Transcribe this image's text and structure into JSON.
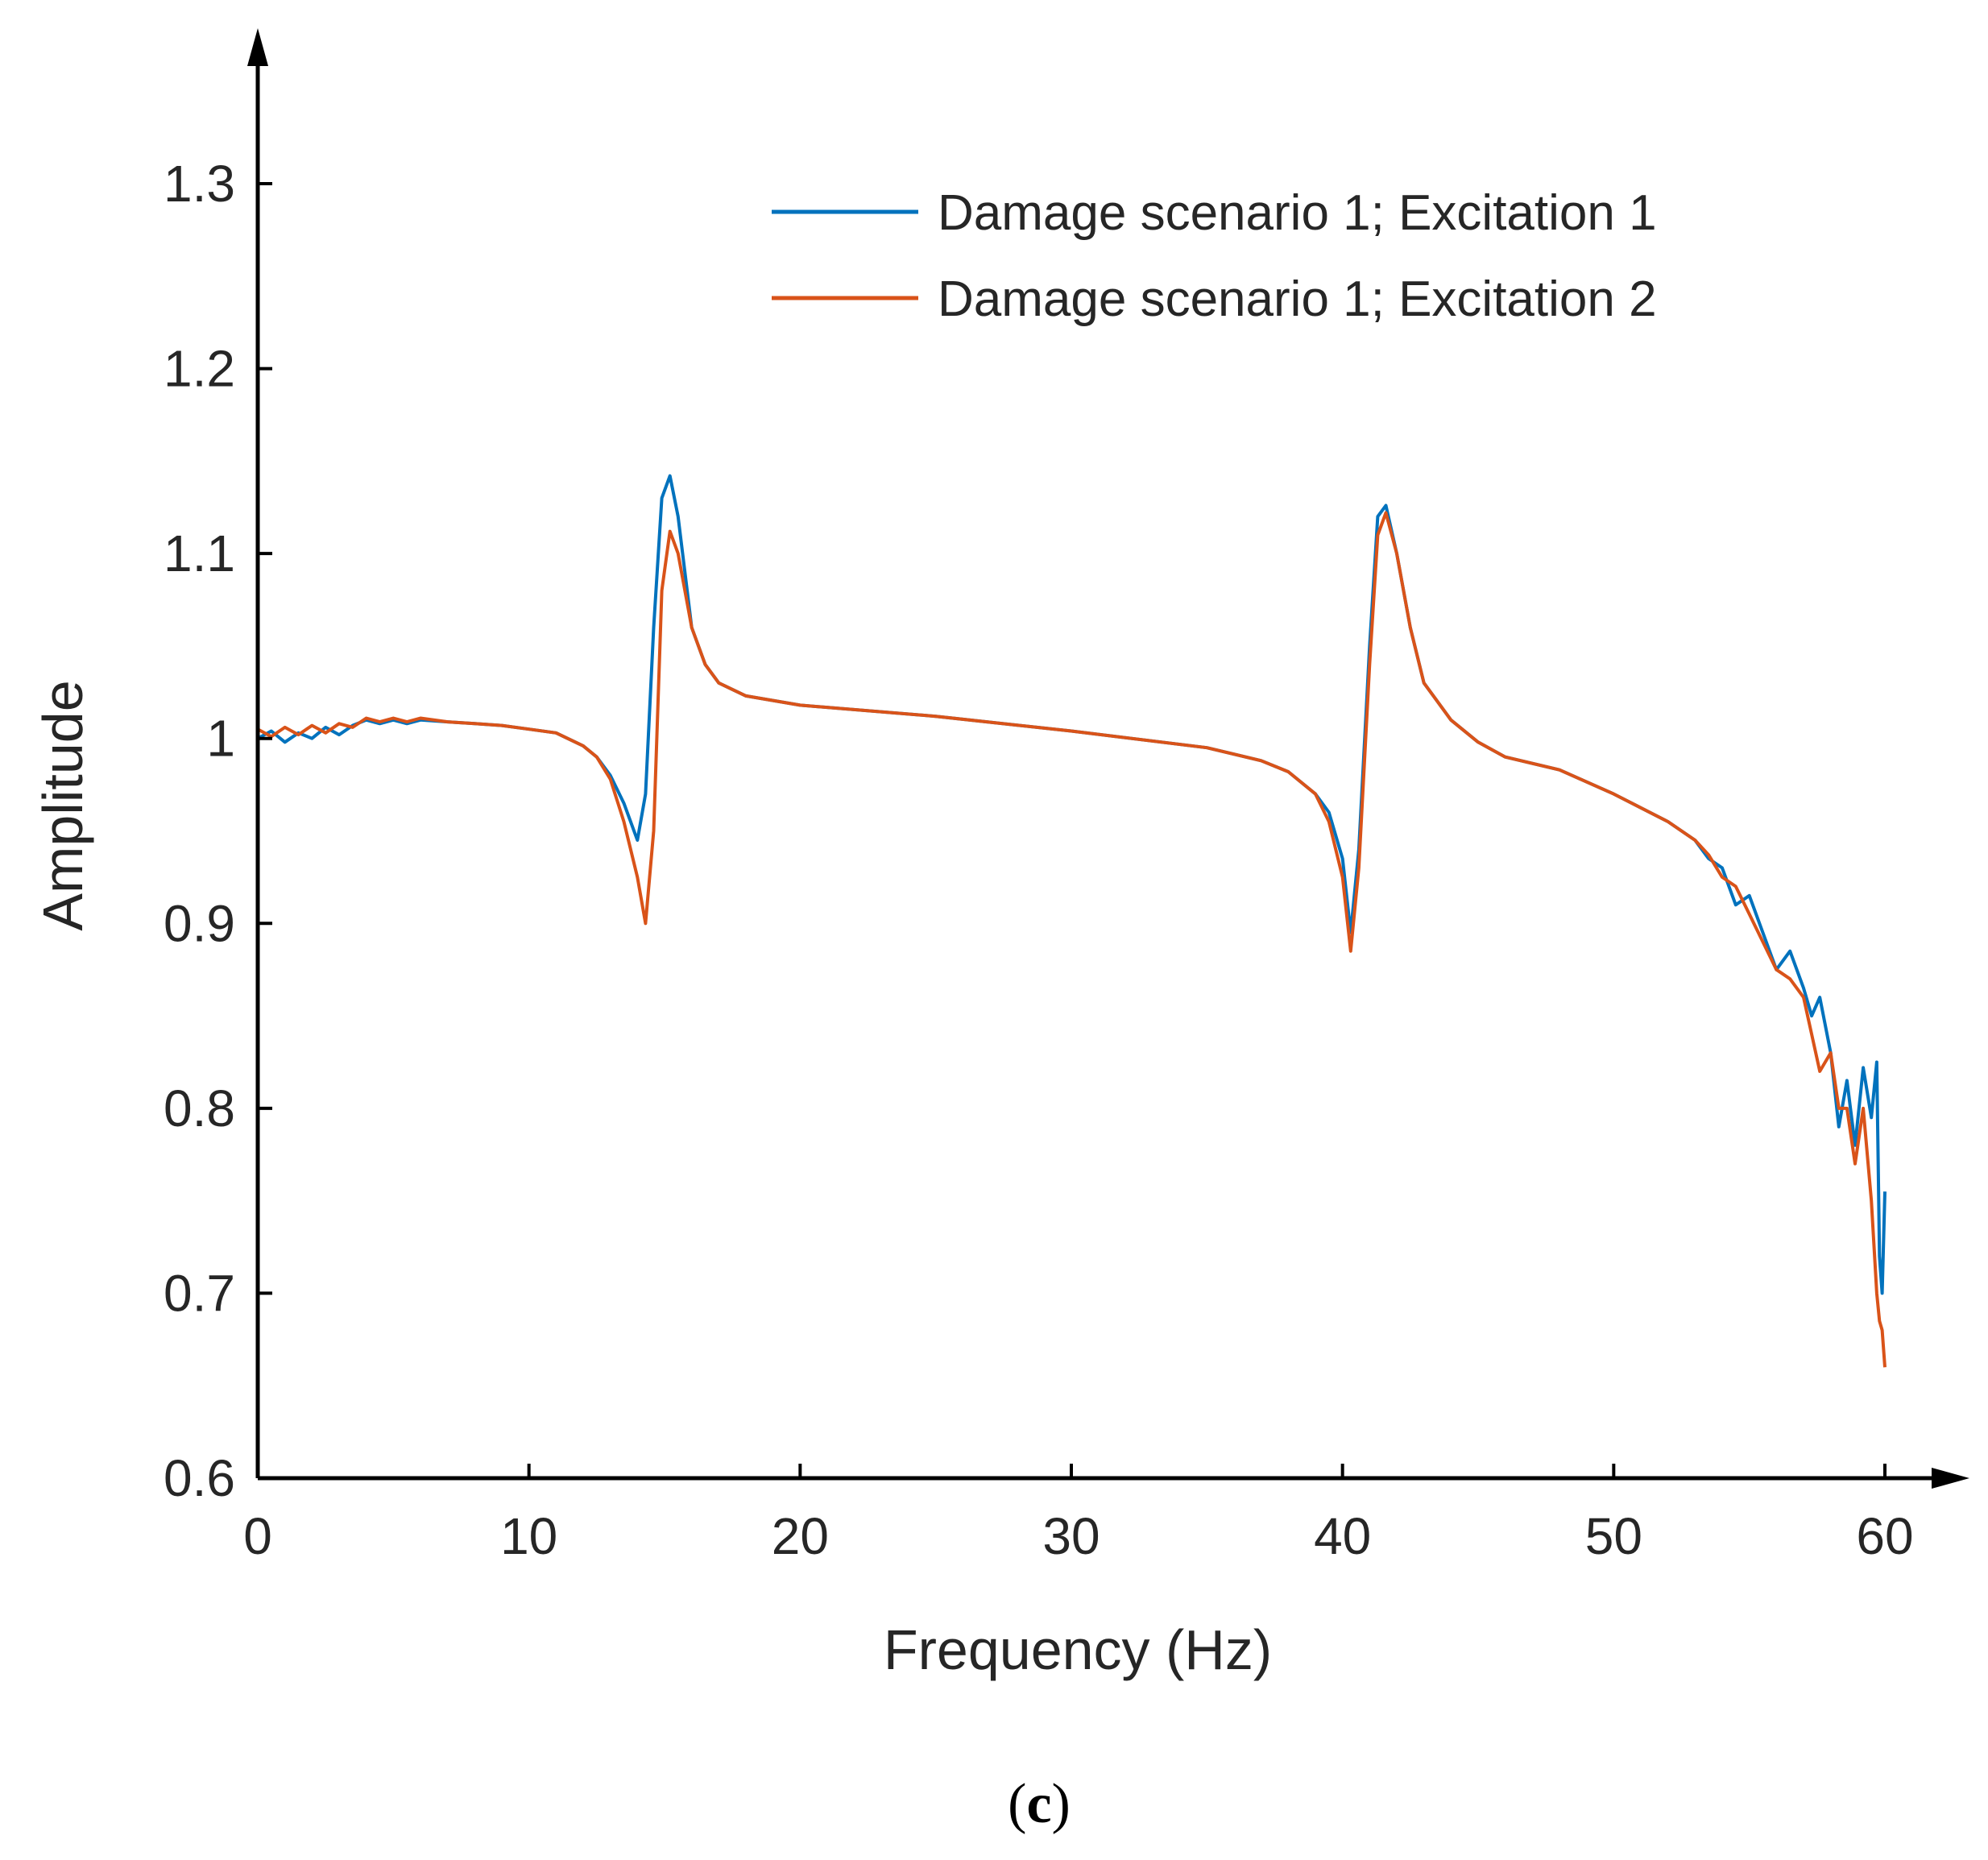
{
  "chart_data": {
    "type": "line",
    "title": "",
    "xlabel": "Frequency (Hz)",
    "ylabel": "Amplitude",
    "xlim": [
      0,
      60
    ],
    "ylim": [
      0.6,
      1.35
    ],
    "xticks": [
      "0",
      "10",
      "20",
      "30",
      "40",
      "50",
      "60"
    ],
    "yticks": [
      "0.6",
      "0.7",
      "0.8",
      "0.9",
      "1",
      "1.1",
      "1.2",
      "1.3"
    ],
    "grid": false,
    "legend_position": "top-right",
    "panel_label": {
      "open": "(",
      "letter": "c",
      "close": ")"
    },
    "series": [
      {
        "name": "Damage scenario 1; Excitation 1",
        "color": "#0072BD",
        "x": [
          0,
          0.5,
          1,
          1.5,
          2,
          2.5,
          3,
          3.5,
          4,
          4.5,
          5,
          5.5,
          6,
          7,
          8,
          9,
          10,
          11,
          12,
          12.5,
          13,
          13.5,
          14,
          14.3,
          14.6,
          14.9,
          15.2,
          15.5,
          16,
          16.5,
          17,
          18,
          20,
          25,
          30,
          35,
          37,
          38,
          39,
          39.5,
          40,
          40.3,
          40.6,
          41,
          41.3,
          41.6,
          42,
          42.5,
          43,
          44,
          45,
          46,
          48,
          50,
          52,
          53,
          53.5,
          54,
          54.5,
          55,
          55.5,
          56,
          56.5,
          57,
          57.3,
          57.6,
          58,
          58.3,
          58.6,
          58.9,
          59.2,
          59.5,
          59.7,
          59.8,
          59.9,
          60
        ],
        "y": [
          1.0,
          1.004,
          0.998,
          1.003,
          1.0,
          1.006,
          1.002,
          1.007,
          1.01,
          1.008,
          1.01,
          1.008,
          1.01,
          1.009,
          1.008,
          1.007,
          1.005,
          1.003,
          0.996,
          0.99,
          0.98,
          0.965,
          0.945,
          0.97,
          1.06,
          1.13,
          1.142,
          1.12,
          1.06,
          1.04,
          1.03,
          1.023,
          1.018,
          1.012,
          1.004,
          0.995,
          0.988,
          0.982,
          0.97,
          0.96,
          0.935,
          0.895,
          0.94,
          1.05,
          1.12,
          1.126,
          1.1,
          1.06,
          1.03,
          1.01,
          0.998,
          0.99,
          0.983,
          0.97,
          0.955,
          0.945,
          0.935,
          0.93,
          0.91,
          0.915,
          0.895,
          0.875,
          0.885,
          0.865,
          0.85,
          0.86,
          0.83,
          0.79,
          0.815,
          0.78,
          0.822,
          0.795,
          0.825,
          0.72,
          0.7,
          0.755
        ]
      },
      {
        "name": "Damage scenario 1; Excitation 2",
        "color": "#D95319",
        "x": [
          0,
          0.5,
          1,
          1.5,
          2,
          2.5,
          3,
          3.5,
          4,
          4.5,
          5,
          5.5,
          6,
          7,
          8,
          9,
          10,
          11,
          12,
          12.5,
          13,
          13.5,
          14,
          14.3,
          14.6,
          14.9,
          15.2,
          15.5,
          16,
          16.5,
          17,
          18,
          20,
          25,
          30,
          35,
          37,
          38,
          39,
          39.5,
          40,
          40.3,
          40.6,
          41,
          41.3,
          41.6,
          42,
          42.5,
          43,
          44,
          45,
          46,
          48,
          50,
          52,
          53,
          53.5,
          54,
          54.5,
          55,
          55.5,
          56,
          56.5,
          57,
          57.3,
          57.6,
          58,
          58.3,
          58.6,
          58.9,
          59.2,
          59.5,
          59.7,
          59.8,
          59.9,
          60
        ],
        "y": [
          1.005,
          1.001,
          1.006,
          1.002,
          1.007,
          1.003,
          1.008,
          1.006,
          1.011,
          1.009,
          1.011,
          1.009,
          1.011,
          1.009,
          1.008,
          1.007,
          1.005,
          1.003,
          0.996,
          0.99,
          0.978,
          0.955,
          0.925,
          0.9,
          0.95,
          1.08,
          1.112,
          1.1,
          1.06,
          1.04,
          1.03,
          1.023,
          1.018,
          1.012,
          1.004,
          0.995,
          0.988,
          0.982,
          0.97,
          0.955,
          0.925,
          0.885,
          0.93,
          1.04,
          1.11,
          1.122,
          1.1,
          1.06,
          1.03,
          1.01,
          0.998,
          0.99,
          0.983,
          0.97,
          0.955,
          0.945,
          0.937,
          0.925,
          0.92,
          0.905,
          0.89,
          0.875,
          0.87,
          0.86,
          0.84,
          0.82,
          0.83,
          0.8,
          0.8,
          0.77,
          0.8,
          0.75,
          0.7,
          0.685,
          0.68,
          0.66
        ]
      }
    ]
  }
}
